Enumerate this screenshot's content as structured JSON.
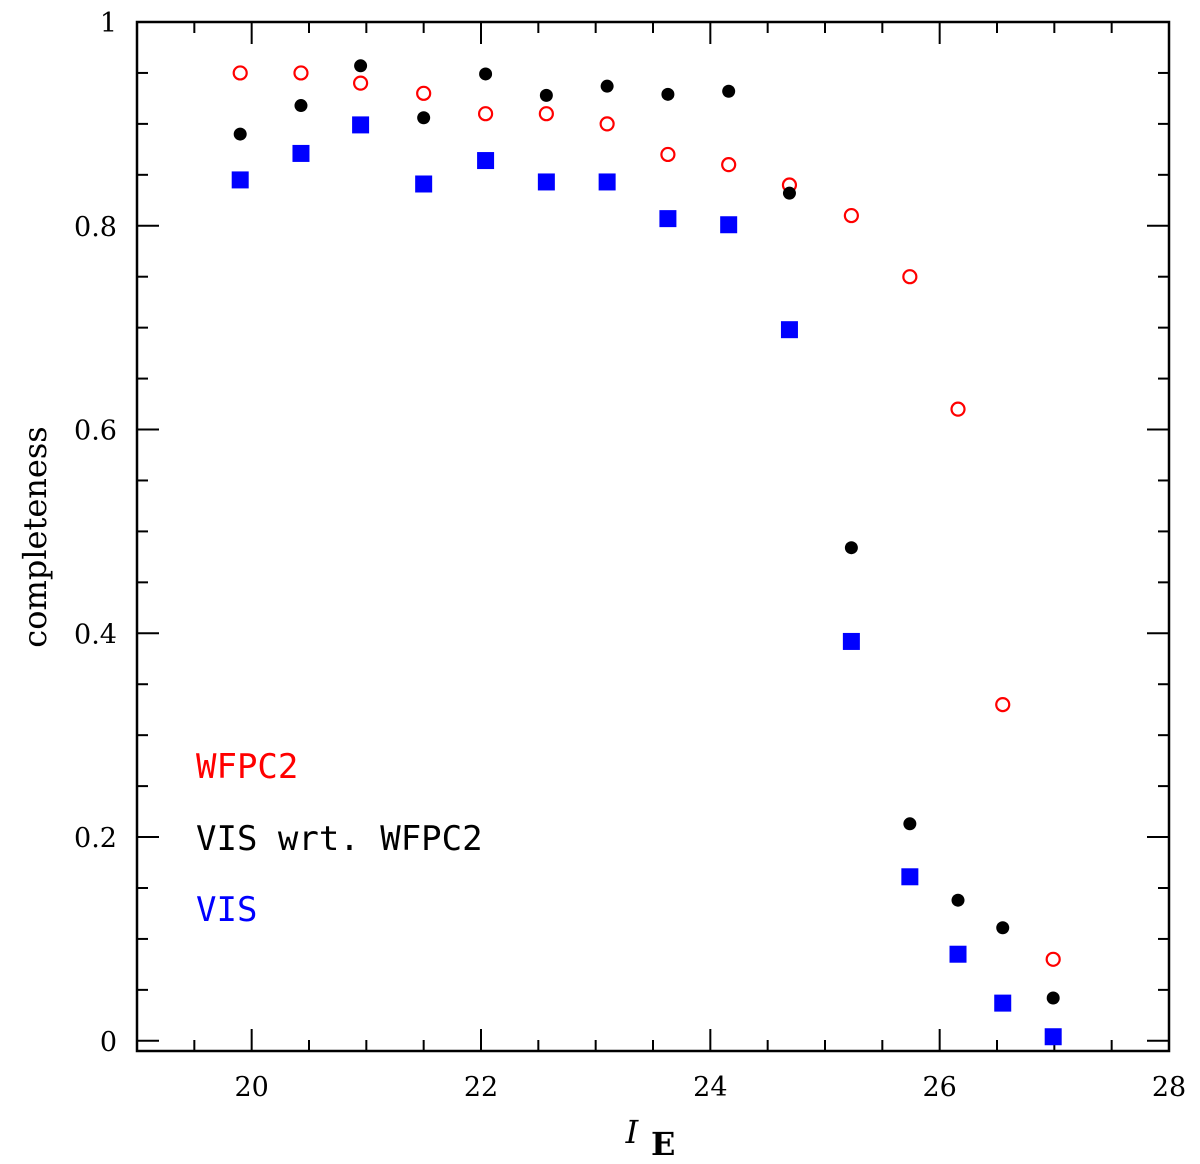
{
  "chart_data": {
    "type": "scatter",
    "title": "",
    "xlabel": "I",
    "xlabel_sub": "E",
    "ylabel": "completeness",
    "xlim": [
      19,
      28
    ],
    "ylim": [
      -0.01,
      1.0
    ],
    "x_ticks": [
      20,
      22,
      24,
      26,
      28
    ],
    "x_tick_labels": [
      "20",
      "22",
      "24",
      "26",
      "28"
    ],
    "y_ticks": [
      0,
      0.2,
      0.4,
      0.6,
      0.8,
      1
    ],
    "y_tick_labels": [
      "0",
      "0.2",
      "0.4",
      "0.6",
      "0.8",
      "1"
    ],
    "grid": false,
    "legend_placement": "bottom-left",
    "series": [
      {
        "name": "WFPC2",
        "color": "#ff0000",
        "marker": "open-circle",
        "x": [
          19.9,
          20.43,
          20.95,
          21.5,
          22.04,
          22.57,
          23.1,
          23.63,
          24.16,
          24.69,
          25.23,
          25.74,
          26.16,
          26.55,
          26.99
        ],
        "y": [
          0.95,
          0.95,
          0.94,
          0.93,
          0.91,
          0.91,
          0.9,
          0.87,
          0.86,
          0.84,
          0.81,
          0.75,
          0.62,
          0.33,
          0.08
        ]
      },
      {
        "name": "VIS wrt. WFPC2",
        "color": "#000000",
        "marker": "filled-circle",
        "x": [
          19.9,
          20.43,
          20.95,
          21.5,
          22.04,
          22.57,
          23.1,
          23.63,
          24.16,
          24.69,
          25.23,
          25.74,
          26.16,
          26.55,
          26.99
        ],
        "y": [
          0.89,
          0.918,
          0.957,
          0.906,
          0.949,
          0.928,
          0.937,
          0.929,
          0.932,
          0.832,
          0.484,
          0.213,
          0.138,
          0.111,
          0.042
        ]
      },
      {
        "name": "VIS",
        "color": "#0000ff",
        "marker": "filled-square",
        "x": [
          19.9,
          20.43,
          20.95,
          21.5,
          22.04,
          22.57,
          23.1,
          23.63,
          24.16,
          24.69,
          25.23,
          25.74,
          26.16,
          26.55,
          26.99
        ],
        "y": [
          0.845,
          0.871,
          0.899,
          0.841,
          0.864,
          0.843,
          0.843,
          0.807,
          0.801,
          0.698,
          0.392,
          0.161,
          0.085,
          0.037,
          0.004
        ]
      }
    ]
  }
}
